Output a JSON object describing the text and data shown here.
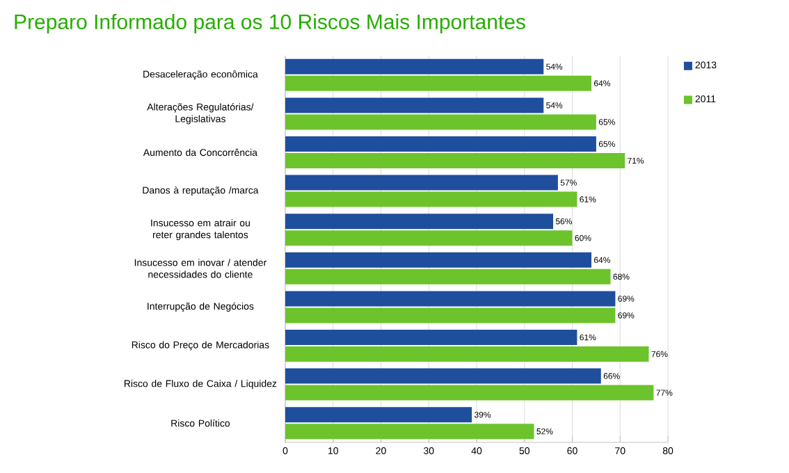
{
  "chart_data": {
    "type": "bar",
    "orientation": "horizontal",
    "title": "Preparo Informado para os 10 Riscos Mais Importantes",
    "categories": [
      "Desaceleração econômica",
      "Alterações Regulatórias/ Legislativas",
      "Aumento da Concorrência",
      "Danos à reputação /marca",
      "Insucesso em atrair ou reter grandes talentos",
      "Insucesso em inovar / atender necessidades do cliente",
      "Interrupção de Negócios",
      "Risco do Preço de Mercadorias",
      "Risco de Fluxo de Caixa / Liquidez",
      "Risco Político"
    ],
    "series": [
      {
        "name": "2013",
        "color": "#1f4e9c",
        "values": [
          54,
          54,
          65,
          57,
          56,
          64,
          69,
          61,
          66,
          39
        ],
        "value_labels": [
          "54%",
          "54%",
          "65%",
          "57%",
          "56%",
          "64%",
          "69%",
          "61%",
          "66%",
          "39%"
        ]
      },
      {
        "name": "2011",
        "color": "#6cc32b",
        "values": [
          64,
          65,
          71,
          61,
          60,
          68,
          69,
          76,
          77,
          52
        ],
        "value_labels": [
          "64%",
          "65%",
          "71%",
          "61%",
          "60%",
          "68%",
          "69%",
          "76%",
          "77%",
          "52%"
        ]
      }
    ],
    "xlim": [
      0,
      80
    ],
    "xticks": [
      0,
      10,
      20,
      30,
      40,
      50,
      60,
      70,
      80
    ],
    "grid": "x",
    "legend": "right"
  }
}
